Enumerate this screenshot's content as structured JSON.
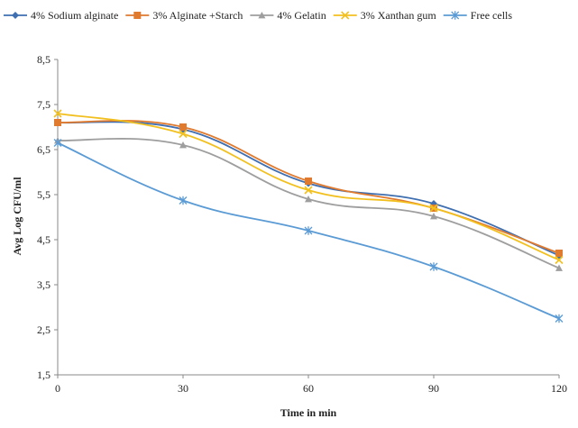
{
  "chart_data": {
    "type": "line",
    "title": "",
    "xlabel": "Time in min",
    "ylabel": "Avg Log CFU/ml",
    "x": [
      0,
      30,
      60,
      90,
      120
    ],
    "x_tick_labels": [
      "0",
      "30",
      "60",
      "90",
      "120"
    ],
    "ylim": [
      1.5,
      8.5
    ],
    "y_ticks": [
      1.5,
      2.5,
      3.5,
      4.5,
      5.5,
      6.5,
      7.5,
      8.5
    ],
    "y_tick_labels": [
      "1,5",
      "2,5",
      "3,5",
      "4,5",
      "5,5",
      "6,5",
      "7,5",
      "8,5"
    ],
    "grid": false,
    "legend_position": "top",
    "smooth": true,
    "series": [
      {
        "name": "4% Sodium alginate",
        "color": "#3f6fb0",
        "marker": "diamond",
        "values": [
          7.1,
          6.95,
          5.75,
          5.3,
          4.15
        ]
      },
      {
        "name": "3% Alginate +Starch",
        "color": "#e07a2e",
        "marker": "square",
        "values": [
          7.1,
          7.0,
          5.8,
          5.2,
          4.2
        ]
      },
      {
        "name": "4% Gelatin",
        "color": "#9e9e9e",
        "marker": "triangle",
        "values": [
          6.7,
          6.6,
          5.4,
          5.02,
          3.87
        ]
      },
      {
        "name": "3% Xanthan gum",
        "color": "#f2c01e",
        "marker": "x",
        "values": [
          7.3,
          6.85,
          5.6,
          5.2,
          4.05
        ]
      },
      {
        "name": "Free cells",
        "color": "#5b9bd5",
        "marker": "asterisk",
        "values": [
          6.65,
          5.37,
          4.7,
          3.9,
          2.75
        ]
      }
    ]
  }
}
